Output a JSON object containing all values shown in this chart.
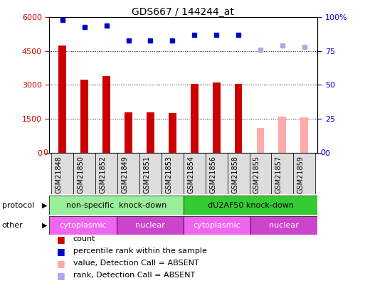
{
  "title": "GDS667 / 144244_at",
  "samples": [
    "GSM21848",
    "GSM21850",
    "GSM21852",
    "GSM21849",
    "GSM21851",
    "GSM21853",
    "GSM21854",
    "GSM21856",
    "GSM21858",
    "GSM21855",
    "GSM21857",
    "GSM21859"
  ],
  "bar_values": [
    4750,
    3250,
    3400,
    1800,
    1800,
    1750,
    3050,
    3100,
    3050,
    1100,
    1600,
    1550
  ],
  "bar_colors": [
    "#cc0000",
    "#cc0000",
    "#cc0000",
    "#cc0000",
    "#cc0000",
    "#cc0000",
    "#cc0000",
    "#cc0000",
    "#cc0000",
    "#ffaaaa",
    "#ffaaaa",
    "#ffaaaa"
  ],
  "percentile_values_raw": [
    98,
    93,
    94,
    83,
    83,
    83,
    87,
    87,
    87,
    76,
    79,
    78
  ],
  "percentile_colors": [
    "#0000cc",
    "#0000cc",
    "#0000cc",
    "#0000cc",
    "#0000cc",
    "#0000cc",
    "#0000cc",
    "#0000cc",
    "#0000cc",
    "#aaaaee",
    "#aaaaee",
    "#aaaaee"
  ],
  "ylim_left": [
    0,
    6000
  ],
  "ylim_right": [
    0,
    100
  ],
  "yticks_left": [
    0,
    1500,
    3000,
    4500,
    6000
  ],
  "yticks_right": [
    0,
    25,
    50,
    75,
    100
  ],
  "protocol_groups": [
    {
      "label": "non-specific  knock-down",
      "start": 0,
      "end": 6,
      "color": "#99ee99"
    },
    {
      "label": "dU2AF50 knock-down",
      "start": 6,
      "end": 12,
      "color": "#33cc33"
    }
  ],
  "other_groups": [
    {
      "label": "cytoplasmic",
      "start": 0,
      "end": 3,
      "color": "#ee66ee"
    },
    {
      "label": "nuclear",
      "start": 3,
      "end": 6,
      "color": "#cc44cc"
    },
    {
      "label": "cytoplasmic",
      "start": 6,
      "end": 9,
      "color": "#ee66ee"
    },
    {
      "label": "nuclear",
      "start": 9,
      "end": 12,
      "color": "#cc44cc"
    }
  ],
  "legend_items": [
    {
      "label": "count",
      "color": "#cc0000"
    },
    {
      "label": "percentile rank within the sample",
      "color": "#0000cc"
    },
    {
      "label": "value, Detection Call = ABSENT",
      "color": "#ffaaaa"
    },
    {
      "label": "rank, Detection Call = ABSENT",
      "color": "#aaaaee"
    }
  ],
  "background_color": "#ffffff",
  "left_axis_color": "#cc0000",
  "right_axis_color": "#0000cc",
  "bar_width": 0.35
}
